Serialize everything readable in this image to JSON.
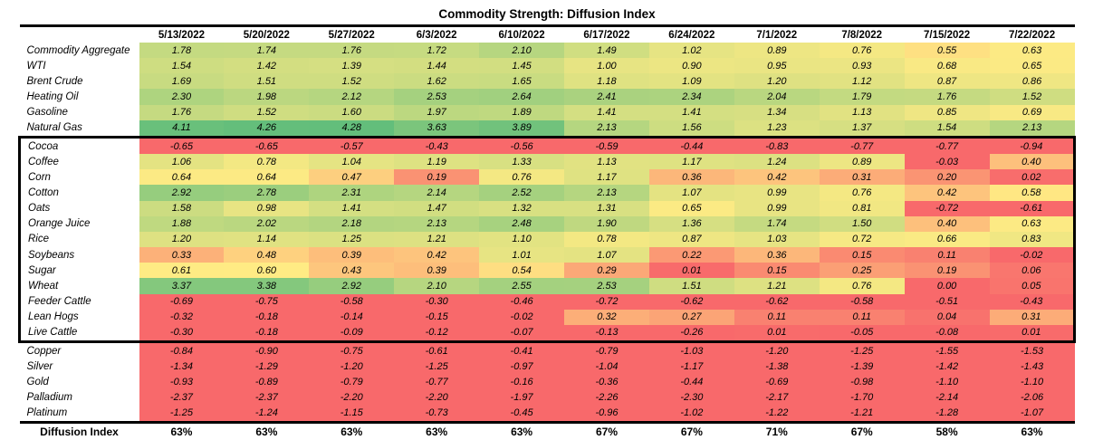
{
  "title": "Commodity Strength: Diffusion Index",
  "chart_data": {
    "type": "heatmap",
    "columns": [
      "5/13/2022",
      "5/20/2022",
      "5/27/2022",
      "6/3/2022",
      "6/10/2022",
      "6/17/2022",
      "6/24/2022",
      "7/1/2022",
      "7/8/2022",
      "7/15/2022",
      "7/22/2022"
    ],
    "rows": [
      {
        "label": "Commodity Aggregate",
        "values": [
          1.78,
          1.74,
          1.76,
          1.72,
          2.1,
          1.49,
          1.02,
          0.89,
          0.76,
          0.55,
          0.63
        ]
      },
      {
        "label": "WTI",
        "values": [
          1.54,
          1.42,
          1.39,
          1.44,
          1.45,
          1.0,
          0.9,
          0.95,
          0.93,
          0.68,
          0.65
        ]
      },
      {
        "label": "Brent Crude",
        "values": [
          1.69,
          1.51,
          1.52,
          1.62,
          1.65,
          1.18,
          1.09,
          1.2,
          1.12,
          0.87,
          0.86
        ]
      },
      {
        "label": "Heating Oil",
        "values": [
          2.3,
          1.98,
          2.12,
          2.53,
          2.64,
          2.41,
          2.34,
          2.04,
          1.79,
          1.76,
          1.52
        ]
      },
      {
        "label": "Gasoline",
        "values": [
          1.76,
          1.52,
          1.6,
          1.97,
          1.89,
          1.41,
          1.41,
          1.34,
          1.13,
          0.85,
          0.69
        ]
      },
      {
        "label": "Natural Gas",
        "values": [
          4.11,
          4.26,
          4.28,
          3.63,
          3.89,
          2.13,
          1.56,
          1.23,
          1.37,
          1.54,
          2.13
        ]
      },
      {
        "label": "Cocoa",
        "values": [
          -0.65,
          -0.65,
          -0.57,
          -0.43,
          -0.56,
          -0.59,
          -0.44,
          -0.83,
          -0.77,
          -0.77,
          -0.94
        ]
      },
      {
        "label": "Coffee",
        "values": [
          1.06,
          0.78,
          1.04,
          1.19,
          1.33,
          1.13,
          1.17,
          1.24,
          0.89,
          -0.03,
          0.4
        ]
      },
      {
        "label": "Corn",
        "values": [
          0.64,
          0.64,
          0.47,
          0.19,
          0.76,
          1.17,
          0.36,
          0.42,
          0.31,
          0.2,
          0.02
        ]
      },
      {
        "label": "Cotton",
        "values": [
          2.92,
          2.78,
          2.31,
          2.14,
          2.52,
          2.13,
          1.07,
          0.99,
          0.76,
          0.42,
          0.58
        ]
      },
      {
        "label": "Oats",
        "values": [
          1.58,
          0.98,
          1.41,
          1.47,
          1.32,
          1.31,
          0.65,
          0.99,
          0.81,
          -0.72,
          -0.61
        ]
      },
      {
        "label": "Orange Juice",
        "values": [
          1.88,
          2.02,
          2.18,
          2.13,
          2.48,
          1.9,
          1.36,
          1.74,
          1.5,
          0.4,
          0.63
        ]
      },
      {
        "label": "Rice",
        "values": [
          1.2,
          1.14,
          1.25,
          1.21,
          1.1,
          0.78,
          0.87,
          1.03,
          0.72,
          0.66,
          0.83
        ]
      },
      {
        "label": "Soybeans",
        "values": [
          0.33,
          0.48,
          0.39,
          0.42,
          1.01,
          1.07,
          0.22,
          0.36,
          0.15,
          0.11,
          -0.02
        ]
      },
      {
        "label": "Sugar",
        "values": [
          0.61,
          0.6,
          0.43,
          0.39,
          0.54,
          0.29,
          0.01,
          0.15,
          0.25,
          0.19,
          0.06
        ]
      },
      {
        "label": "Wheat",
        "values": [
          3.37,
          3.38,
          2.92,
          2.1,
          2.55,
          2.53,
          1.51,
          1.21,
          0.76,
          0.0,
          0.05
        ]
      },
      {
        "label": "Feeder Cattle",
        "values": [
          -0.69,
          -0.75,
          -0.58,
          -0.3,
          -0.46,
          -0.72,
          -0.62,
          -0.62,
          -0.58,
          -0.51,
          -0.43
        ]
      },
      {
        "label": "Lean Hogs",
        "values": [
          -0.32,
          -0.18,
          -0.14,
          -0.15,
          -0.02,
          0.32,
          0.27,
          0.11,
          0.11,
          0.04,
          0.31
        ]
      },
      {
        "label": "Live Cattle",
        "values": [
          -0.3,
          -0.18,
          -0.09,
          -0.12,
          -0.07,
          -0.13,
          -0.26,
          0.01,
          -0.05,
          -0.08,
          0.01
        ]
      },
      {
        "label": "Copper",
        "values": [
          -0.84,
          -0.9,
          -0.75,
          -0.61,
          -0.41,
          -0.79,
          -1.03,
          -1.2,
          -1.25,
          -1.55,
          -1.53
        ]
      },
      {
        "label": "Silver",
        "values": [
          -1.34,
          -1.29,
          -1.2,
          -1.25,
          -0.97,
          -1.04,
          -1.17,
          -1.38,
          -1.39,
          -1.42,
          -1.43
        ]
      },
      {
        "label": "Gold",
        "values": [
          -0.93,
          -0.89,
          -0.79,
          -0.77,
          -0.16,
          -0.36,
          -0.44,
          -0.69,
          -0.98,
          -1.1,
          -1.1
        ]
      },
      {
        "label": "Palladium",
        "values": [
          -2.37,
          -2.37,
          -2.2,
          -2.2,
          -1.97,
          -2.26,
          -2.3,
          -2.17,
          -1.7,
          -2.14,
          -2.06
        ]
      },
      {
        "label": "Platinum",
        "values": [
          -1.25,
          -1.24,
          -1.15,
          -0.73,
          -0.45,
          -0.96,
          -1.02,
          -1.22,
          -1.21,
          -1.28,
          -1.07
        ]
      }
    ],
    "footer": {
      "label": "Diffusion Index",
      "values": [
        "63%",
        "63%",
        "63%",
        "63%",
        "63%",
        "67%",
        "67%",
        "71%",
        "67%",
        "58%",
        "63%"
      ]
    },
    "highlight_box_rows": {
      "from": "Cocoa",
      "to": "Live Cattle"
    },
    "color_scale": {
      "min_value": 0.0,
      "min_color": "#F8696B",
      "mid_value": 0.6,
      "mid_color": "#FFEB84",
      "max_value": 4.28,
      "max_color": "#63BE7B"
    }
  }
}
